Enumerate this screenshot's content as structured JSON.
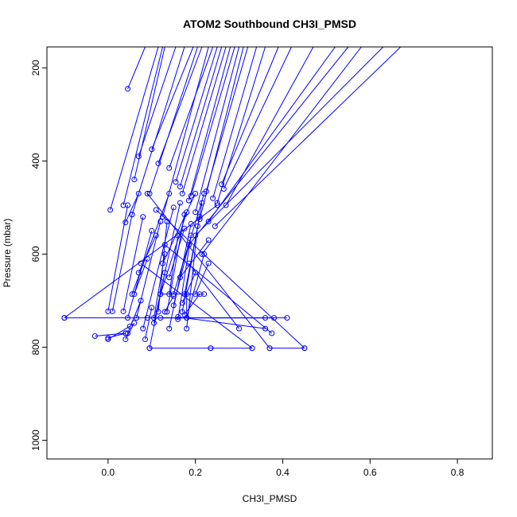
{
  "chart_data": {
    "type": "line",
    "title": "ATOM2 Southbound CH3I_PMSD",
    "xlabel": "CH3I_PMSD",
    "ylabel": "Pressure (mbar)",
    "xlim": [
      -0.14,
      0.88
    ],
    "ylim": [
      1040,
      155
    ],
    "y_reversed": true,
    "grid": false,
    "x_ticks": [
      0.0,
      0.2,
      0.4,
      0.6,
      0.8
    ],
    "x_tick_labels": [
      "0.0",
      "0.2",
      "0.4",
      "0.6",
      "0.8"
    ],
    "y_ticks": [
      200,
      400,
      600,
      800,
      1000
    ],
    "y_tick_labels": [
      "200",
      "400",
      "600",
      "800",
      "1000"
    ],
    "color": "#0000ff",
    "series": [
      {
        "points": [
          [
            0.005,
            505
          ],
          [
            0.115,
            155
          ]
        ]
      },
      {
        "points": [
          [
            0.045,
            245
          ],
          [
            0.085,
            155
          ]
        ]
      },
      {
        "points": [
          [
            0.035,
            495
          ],
          [
            0.125,
            155
          ]
        ]
      },
      {
        "points": [
          [
            0.055,
            515
          ],
          [
            0.175,
            155
          ]
        ]
      },
      {
        "points": [
          [
            0.06,
            440
          ],
          [
            0.13,
            155
          ]
        ]
      },
      {
        "points": [
          [
            0.07,
            390
          ],
          [
            0.155,
            155
          ]
        ]
      },
      {
        "points": [
          [
            0.1,
            375
          ],
          [
            0.195,
            155
          ]
        ]
      },
      {
        "points": [
          [
            0.095,
            470
          ],
          [
            0.205,
            155
          ]
        ]
      },
      {
        "points": [
          [
            0.115,
            405
          ],
          [
            0.215,
            155
          ]
        ]
      },
      {
        "points": [
          [
            0.125,
            520
          ],
          [
            0.23,
            155
          ]
        ]
      },
      {
        "points": [
          [
            0.14,
            415
          ],
          [
            0.24,
            155
          ]
        ]
      },
      {
        "points": [
          [
            0.155,
            445
          ],
          [
            0.25,
            155
          ]
        ]
      },
      {
        "points": [
          [
            0.165,
            455
          ],
          [
            0.26,
            155
          ]
        ]
      },
      {
        "points": [
          [
            0.17,
            470
          ],
          [
            0.27,
            155
          ]
        ]
      },
      {
        "points": [
          [
            0.185,
            485
          ],
          [
            0.28,
            155
          ]
        ]
      },
      {
        "points": [
          [
            0.19,
            475
          ],
          [
            0.29,
            155
          ]
        ]
      },
      {
        "points": [
          [
            0.2,
            510
          ],
          [
            0.3,
            155
          ]
        ]
      },
      {
        "points": [
          [
            0.21,
            525
          ],
          [
            0.31,
            155
          ]
        ]
      },
      {
        "points": [
          [
            0.225,
            465
          ],
          [
            0.32,
            155
          ]
        ]
      },
      {
        "points": [
          [
            0.24,
            480
          ],
          [
            0.34,
            155
          ]
        ]
      },
      {
        "points": [
          [
            0.25,
            490
          ],
          [
            0.36,
            155
          ]
        ]
      },
      {
        "points": [
          [
            0.26,
            450
          ],
          [
            0.39,
            155
          ]
        ]
      },
      {
        "points": [
          [
            0.265,
            460
          ],
          [
            0.42,
            155
          ]
        ]
      },
      {
        "points": [
          [
            0.27,
            495
          ],
          [
            0.47,
            155
          ]
        ]
      },
      {
        "points": [
          [
            0.23,
            530
          ],
          [
            0.52,
            155
          ]
        ]
      },
      {
        "points": [
          [
            0.215,
            600
          ],
          [
            0.58,
            155
          ]
        ]
      },
      {
        "points": [
          [
            0.2,
            560
          ],
          [
            0.63,
            155
          ]
        ]
      },
      {
        "points": [
          [
            0.245,
            540
          ],
          [
            0.67,
            155
          ]
        ]
      },
      {
        "points": [
          [
            0.185,
            580
          ],
          [
            0.55,
            155
          ]
        ]
      },
      {
        "points": [
          [
            -0.1,
            737
          ],
          [
            0.25,
            495
          ]
        ]
      },
      {
        "points": [
          [
            -0.1,
            737
          ],
          [
            0.36,
            737
          ]
        ]
      },
      {
        "points": [
          [
            0.0,
            723
          ],
          [
            0.045,
            495
          ]
        ]
      },
      {
        "points": [
          [
            0.01,
            723
          ],
          [
            0.055,
            515
          ]
        ]
      },
      {
        "points": [
          [
            0.035,
            723
          ],
          [
            0.08,
            520
          ]
        ]
      },
      {
        "points": [
          [
            0.045,
            737
          ],
          [
            0.1,
            550
          ]
        ]
      },
      {
        "points": [
          [
            0.065,
            737
          ],
          [
            0.12,
            530
          ]
        ]
      },
      {
        "points": [
          [
            0.055,
            686
          ],
          [
            0.14,
            470
          ]
        ]
      },
      {
        "points": [
          [
            0.08,
            760
          ],
          [
            0.15,
            500
          ]
        ]
      },
      {
        "points": [
          [
            0.105,
            748
          ],
          [
            0.165,
            490
          ]
        ]
      },
      {
        "points": [
          [
            0.12,
            686
          ],
          [
            0.18,
            510
          ]
        ]
      },
      {
        "points": [
          [
            0.125,
            620
          ],
          [
            0.2,
            470
          ]
        ]
      },
      {
        "points": [
          [
            0.135,
            724
          ],
          [
            0.175,
            515
          ]
        ]
      },
      {
        "points": [
          [
            0.14,
            760
          ],
          [
            0.19,
            535
          ]
        ]
      },
      {
        "points": [
          [
            0.15,
            686
          ],
          [
            0.22,
            470
          ]
        ]
      },
      {
        "points": [
          [
            0.16,
            740
          ],
          [
            0.19,
            560
          ]
        ]
      },
      {
        "points": [
          [
            0.17,
            724
          ],
          [
            0.215,
            490
          ]
        ]
      },
      {
        "points": [
          [
            0.18,
            737
          ],
          [
            0.22,
            600
          ]
        ]
      },
      {
        "points": [
          [
            0.18,
            760
          ],
          [
            0.205,
            540
          ]
        ]
      },
      {
        "points": [
          [
            0.175,
            686
          ],
          [
            0.21,
            520
          ]
        ]
      },
      {
        "points": [
          [
            0.15,
            710
          ],
          [
            0.185,
            580
          ]
        ]
      },
      {
        "points": [
          [
            0.14,
            650
          ],
          [
            0.175,
            545
          ]
        ]
      },
      {
        "points": [
          [
            0.165,
            650
          ],
          [
            0.23,
            570
          ]
        ]
      },
      {
        "points": [
          [
            0.12,
            686
          ],
          [
            0.22,
            686
          ]
        ]
      },
      {
        "points": [
          [
            0.09,
            737
          ],
          [
            0.38,
            737
          ]
        ]
      },
      {
        "points": [
          [
            0.12,
            737
          ],
          [
            0.41,
            737
          ]
        ]
      },
      {
        "points": [
          [
            0.16,
            735
          ],
          [
            0.36,
            760
          ]
        ]
      },
      {
        "points": [
          [
            0.13,
            580
          ],
          [
            0.375,
            770
          ]
        ]
      },
      {
        "points": [
          [
            0.185,
            620
          ],
          [
            0.3,
            760
          ]
        ]
      },
      {
        "points": [
          [
            0.09,
            470
          ],
          [
            0.37,
            802
          ]
        ]
      },
      {
        "points": [
          [
            0.11,
            505
          ],
          [
            0.45,
            802
          ]
        ]
      },
      {
        "points": [
          [
            0.075,
            620
          ],
          [
            0.33,
            802
          ]
        ]
      },
      {
        "points": [
          [
            0.095,
            802
          ],
          [
            0.235,
            802
          ]
        ]
      },
      {
        "points": [
          [
            0.235,
            802
          ],
          [
            0.33,
            802
          ]
        ]
      },
      {
        "points": [
          [
            0.37,
            802
          ],
          [
            0.45,
            802
          ]
        ]
      },
      {
        "points": [
          [
            0.095,
            802
          ],
          [
            0.13,
            640
          ]
        ]
      },
      {
        "points": [
          [
            0.085,
            783
          ],
          [
            0.1,
            715
          ]
        ]
      },
      {
        "points": [
          [
            -0.03,
            776
          ],
          [
            0.04,
            770
          ]
        ]
      },
      {
        "points": [
          [
            0.0,
            780
          ],
          [
            0.04,
            770
          ]
        ]
      },
      {
        "points": [
          [
            0.0,
            783
          ],
          [
            0.05,
            755
          ]
        ]
      },
      {
        "points": [
          [
            0.04,
            783
          ],
          [
            0.06,
            748
          ]
        ]
      },
      {
        "points": [
          [
            0.045,
            770
          ],
          [
            0.075,
            700
          ]
        ]
      },
      {
        "points": [
          [
            0.105,
            737
          ],
          [
            0.13,
            600
          ]
        ]
      },
      {
        "points": [
          [
            0.115,
            724
          ],
          [
            0.135,
            530
          ]
        ]
      },
      {
        "points": [
          [
            0.14,
            686
          ],
          [
            0.16,
            560
          ]
        ]
      },
      {
        "points": [
          [
            0.2,
            686
          ],
          [
            0.23,
            620
          ]
        ]
      },
      {
        "points": [
          [
            0.17,
            705
          ],
          [
            0.2,
            640
          ]
        ]
      },
      {
        "points": [
          [
            0.13,
            724
          ],
          [
            0.15,
            690
          ]
        ]
      },
      {
        "points": [
          [
            0.06,
            686
          ],
          [
            0.09,
            610
          ]
        ]
      },
      {
        "points": [
          [
            0.07,
            640
          ],
          [
            0.11,
            560
          ]
        ]
      },
      {
        "points": [
          [
            0.04,
            532
          ],
          [
            0.07,
            470
          ]
        ]
      },
      {
        "points": [
          [
            0.18,
            737
          ],
          [
            0.18,
            686
          ]
        ]
      },
      {
        "points": [
          [
            0.175,
            730
          ],
          [
            0.21,
            686
          ]
        ]
      }
    ]
  }
}
